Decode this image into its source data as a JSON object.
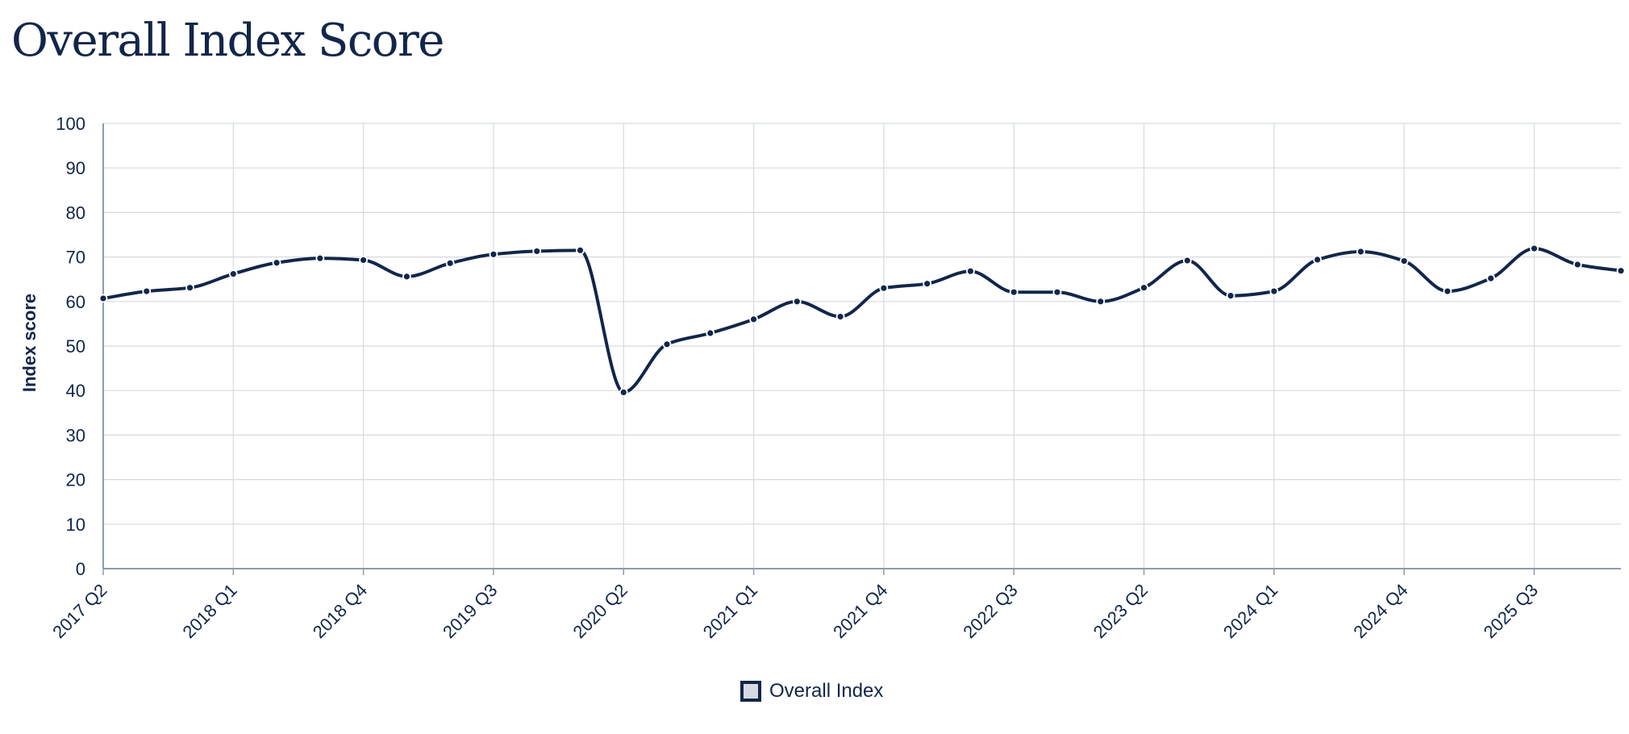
{
  "chart_data": {
    "type": "line",
    "title": "Overall Index Score",
    "xlabel": "",
    "ylabel": "Index score",
    "ylim": [
      0,
      100
    ],
    "yticks": [
      0,
      10,
      20,
      30,
      40,
      50,
      60,
      70,
      80,
      90,
      100
    ],
    "x": [
      "2017 Q2",
      "2017 Q3",
      "2017 Q4",
      "2018 Q1",
      "2018 Q2",
      "2018 Q3",
      "2018 Q4",
      "2019 Q1",
      "2019 Q2",
      "2019 Q3",
      "2019 Q4",
      "2020 Q1",
      "2020 Q2",
      "2020 Q3",
      "2020 Q4",
      "2021 Q1",
      "2021 Q2",
      "2021 Q3",
      "2021 Q4",
      "2022 Q1",
      "2022 Q2",
      "2022 Q3",
      "2022 Q4",
      "2023 Q1",
      "2023 Q2",
      "2023 Q3",
      "2023 Q4",
      "2024 Q1",
      "2024 Q2",
      "2024 Q3",
      "2024 Q4",
      "2025 Q1",
      "2025 Q2",
      "2025 Q3",
      "2025 Q4",
      "2026 Q1"
    ],
    "xtick_labels": [
      "2017 Q2",
      "2018 Q1",
      "2018 Q4",
      "2019 Q3",
      "2020 Q2",
      "2021 Q1",
      "2021 Q4",
      "2022 Q3",
      "2023 Q2",
      "2024 Q1",
      "2024 Q4",
      "2025 Q3"
    ],
    "series": [
      {
        "name": "Overall Index",
        "color": "#12264a",
        "values": [
          60.7,
          62.3,
          63.1,
          66.2,
          68.7,
          69.7,
          69.3,
          65.6,
          68.6,
          70.6,
          71.3,
          71.5,
          39.6,
          50.4,
          52.9,
          56.0,
          60.0,
          56.6,
          63.0,
          64.0,
          66.8,
          62.1,
          62.1,
          60.0,
          63.1,
          69.2,
          61.3,
          62.3,
          69.4,
          71.2,
          69.1,
          62.3,
          65.2,
          71.9,
          68.3,
          66.9
        ]
      }
    ],
    "grid": true,
    "legend_position": "bottom-center",
    "colors": {
      "line": "#12264a",
      "grid": "#d5d9e0",
      "axis": "#8f9aac",
      "legend_fill": "#d6dbe3"
    }
  }
}
